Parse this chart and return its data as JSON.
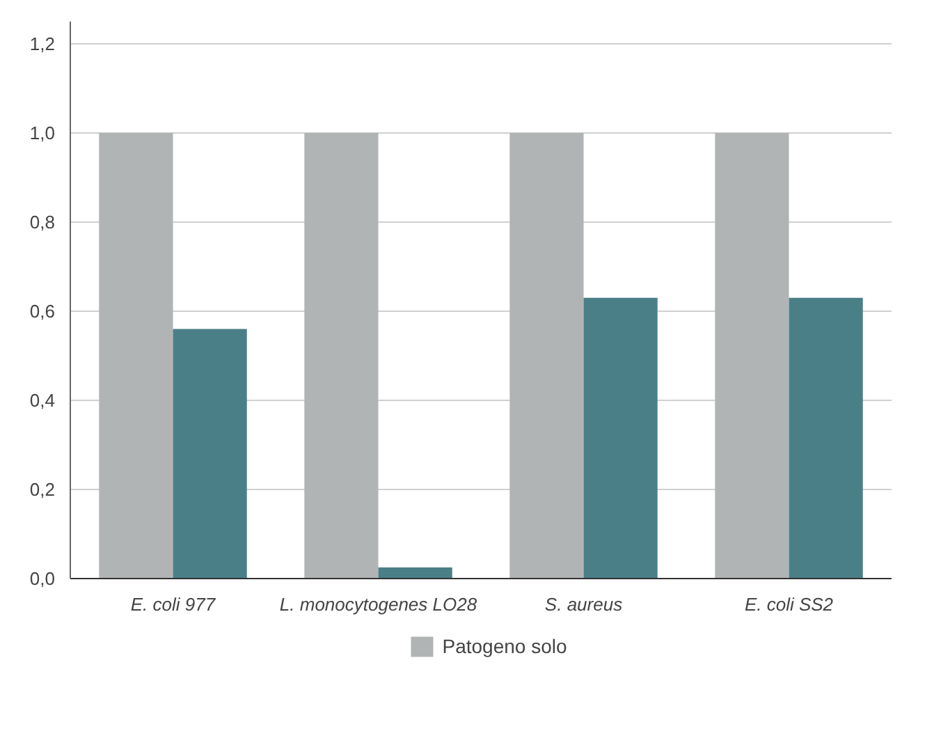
{
  "chart_data": {
    "type": "bar",
    "categories": [
      "E. coli 977",
      "L. monocytogenes LO28",
      "S. aureus",
      "E. coli SS2"
    ],
    "series": [
      {
        "name": "Patogeno solo",
        "color": "#b1b4b5",
        "values": [
          1.0,
          1.0,
          1.0,
          1.0
        ]
      },
      {
        "color": "#4a7f88",
        "values": [
          0.56,
          0.025,
          0.63,
          0.63
        ]
      }
    ],
    "ylim": [
      0,
      1.25
    ],
    "yticks": [
      {
        "value": 0,
        "label": "0,0"
      },
      {
        "value": 0.2,
        "label": "0,2"
      },
      {
        "value": 0.4,
        "label": "0,4"
      },
      {
        "value": 0.6,
        "label": "0,6"
      },
      {
        "value": 0.8,
        "label": "0,8"
      },
      {
        "value": 1.0,
        "label": "1,0"
      },
      {
        "value": 1.2,
        "label": "1,2"
      }
    ],
    "grid": "y",
    "legend": "bottom"
  }
}
